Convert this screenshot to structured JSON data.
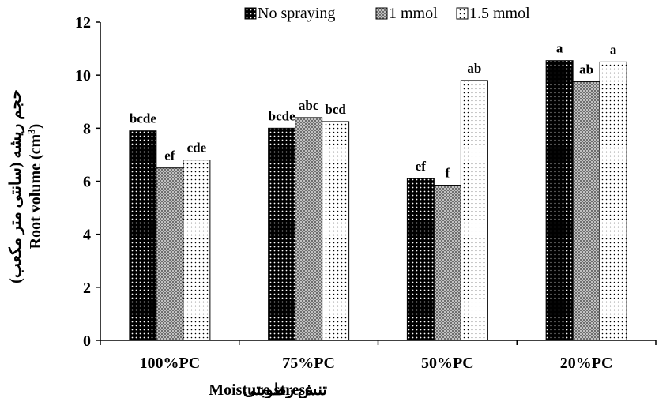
{
  "chart_data": {
    "type": "bar",
    "categories": [
      "100%PC",
      "75%PC",
      "50%PC",
      "20%PC"
    ],
    "series": [
      {
        "name": "No spraying",
        "values": [
          7.9,
          8.0,
          6.1,
          10.55
        ],
        "labels": [
          "bcde",
          "bcde",
          "ef",
          "a"
        ]
      },
      {
        "name": "1 mmol",
        "values": [
          6.5,
          8.4,
          5.85,
          9.75
        ],
        "labels": [
          "ef",
          "abc",
          "f",
          "ab"
        ]
      },
      {
        "name": "1.5 mmol",
        "values": [
          6.8,
          8.25,
          9.8,
          10.5
        ],
        "labels": [
          "cde",
          "bcd",
          "ab",
          "a"
        ]
      }
    ],
    "xlabel": "Moisture stress",
    "xlabel_fa": "تنش رطوبتی",
    "ylabel_fa": "حجم ریشه (سانتی متر مکعب)",
    "ylabel": "Root volume (cm",
    "ylabel_sup": "3",
    "ylabel_end": ")",
    "yticks": [
      0,
      2,
      4,
      6,
      8,
      10,
      12
    ],
    "ylim": [
      0,
      12
    ],
    "legend_position": "top",
    "grid": false,
    "colors": {
      "series0": "#000000",
      "series1": "#8c8c8c",
      "series2": "#ffffff",
      "axis": "#000000"
    }
  }
}
